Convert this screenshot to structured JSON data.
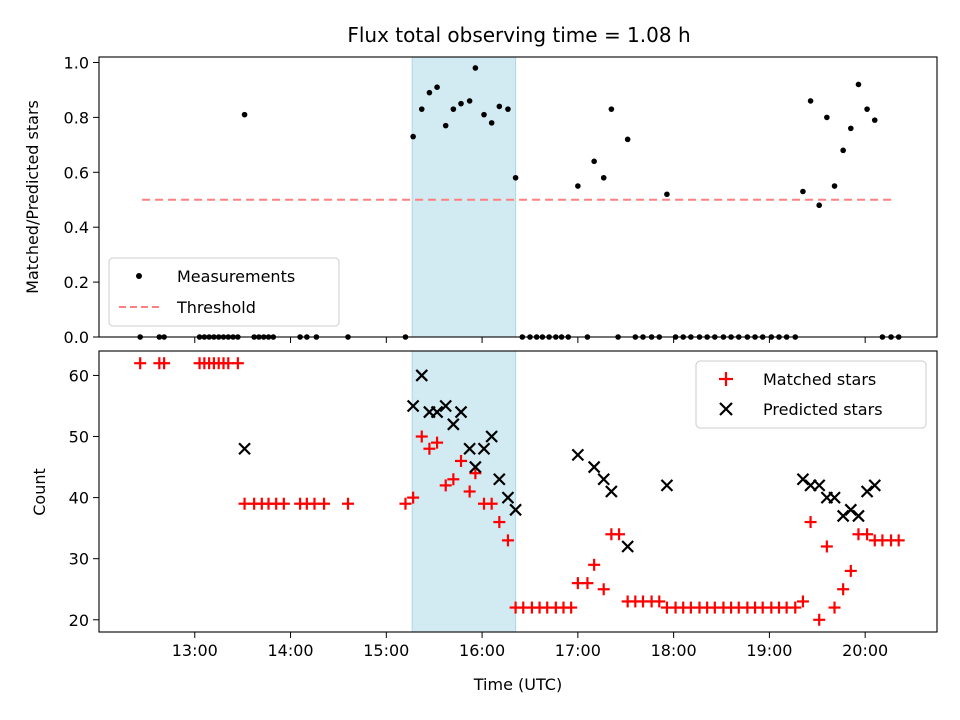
{
  "title": "Flux total observing time = 1.08 h",
  "chart_data": [
    {
      "type": "scatter",
      "panel": "top",
      "ylabel": "Matched/Predicted stars",
      "xlabel": "",
      "x_unit": "hours UTC",
      "xlim": [
        12.0,
        20.75
      ],
      "ylim": [
        0.0,
        1.02
      ],
      "y_ticks": [
        "0.0",
        "0.2",
        "0.4",
        "0.6",
        "0.8",
        "1.0"
      ],
      "highlight_span": [
        15.27,
        16.35
      ],
      "highlight_color": "#add8e6",
      "threshold": {
        "name": "Threshold",
        "value": 0.5,
        "x_range": [
          12.45,
          20.3
        ],
        "color": "#ff8080",
        "style": "dashed"
      },
      "series": [
        {
          "name": "Measurements",
          "color": "#000000",
          "marker": "dot",
          "points": [
            [
              12.43,
              0
            ],
            [
              12.63,
              0
            ],
            [
              12.68,
              0
            ],
            [
              13.05,
              0
            ],
            [
              13.1,
              0
            ],
            [
              13.15,
              0
            ],
            [
              13.2,
              0
            ],
            [
              13.25,
              0
            ],
            [
              13.3,
              0
            ],
            [
              13.35,
              0
            ],
            [
              13.4,
              0
            ],
            [
              13.45,
              0
            ],
            [
              13.52,
              0.81
            ],
            [
              13.62,
              0
            ],
            [
              13.67,
              0
            ],
            [
              13.72,
              0
            ],
            [
              13.77,
              0
            ],
            [
              13.82,
              0
            ],
            [
              14.1,
              0
            ],
            [
              14.17,
              0
            ],
            [
              14.27,
              0
            ],
            [
              14.6,
              0
            ],
            [
              15.2,
              0
            ],
            [
              15.28,
              0.73
            ],
            [
              15.37,
              0.83
            ],
            [
              15.45,
              0.89
            ],
            [
              15.53,
              0.91
            ],
            [
              15.62,
              0.77
            ],
            [
              15.7,
              0.83
            ],
            [
              15.78,
              0.85
            ],
            [
              15.87,
              0.86
            ],
            [
              15.93,
              0.98
            ],
            [
              16.02,
              0.81
            ],
            [
              16.1,
              0.78
            ],
            [
              16.18,
              0.84
            ],
            [
              16.27,
              0.83
            ],
            [
              16.35,
              0.58
            ],
            [
              16.42,
              0
            ],
            [
              16.5,
              0
            ],
            [
              16.57,
              0
            ],
            [
              16.63,
              0
            ],
            [
              16.7,
              0
            ],
            [
              16.77,
              0
            ],
            [
              16.83,
              0
            ],
            [
              16.9,
              0
            ],
            [
              17.0,
              0.55
            ],
            [
              17.1,
              0
            ],
            [
              17.17,
              0.64
            ],
            [
              17.27,
              0.58
            ],
            [
              17.35,
              0.83
            ],
            [
              17.42,
              0
            ],
            [
              17.52,
              0.72
            ],
            [
              17.6,
              0
            ],
            [
              17.68,
              0
            ],
            [
              17.77,
              0
            ],
            [
              17.85,
              0
            ],
            [
              17.93,
              0.52
            ],
            [
              18.02,
              0
            ],
            [
              18.1,
              0
            ],
            [
              18.18,
              0
            ],
            [
              18.27,
              0
            ],
            [
              18.35,
              0
            ],
            [
              18.43,
              0
            ],
            [
              18.52,
              0
            ],
            [
              18.6,
              0
            ],
            [
              18.68,
              0
            ],
            [
              18.77,
              0
            ],
            [
              18.85,
              0
            ],
            [
              18.93,
              0
            ],
            [
              19.02,
              0
            ],
            [
              19.1,
              0
            ],
            [
              19.18,
              0
            ],
            [
              19.27,
              0
            ],
            [
              19.35,
              0.53
            ],
            [
              19.43,
              0.86
            ],
            [
              19.52,
              0.48
            ],
            [
              19.6,
              0.8
            ],
            [
              19.68,
              0.55
            ],
            [
              19.77,
              0.68
            ],
            [
              19.85,
              0.76
            ],
            [
              19.93,
              0.92
            ],
            [
              20.02,
              0.83
            ],
            [
              20.1,
              0.79
            ],
            [
              20.18,
              0
            ],
            [
              20.27,
              0
            ],
            [
              20.35,
              0
            ]
          ]
        }
      ],
      "legend": {
        "placement": "lower-left",
        "entries": [
          "Measurements",
          "Threshold"
        ]
      }
    },
    {
      "type": "scatter",
      "panel": "bottom",
      "ylabel": "Count",
      "xlabel": "Time (UTC)",
      "x_ticks": [
        "13:00",
        "14:00",
        "15:00",
        "16:00",
        "17:00",
        "18:00",
        "19:00",
        "20:00"
      ],
      "x_tick_values": [
        13,
        14,
        15,
        16,
        17,
        18,
        19,
        20
      ],
      "xlim": [
        12.0,
        20.75
      ],
      "ylim": [
        18.0,
        64.0
      ],
      "y_ticks": [
        "20",
        "30",
        "40",
        "50",
        "60"
      ],
      "highlight_span": [
        15.27,
        16.35
      ],
      "series": [
        {
          "name": "Matched stars",
          "color": "#ff0000",
          "marker": "plus",
          "points": [
            [
              12.43,
              62
            ],
            [
              12.63,
              62
            ],
            [
              12.68,
              62
            ],
            [
              13.05,
              62
            ],
            [
              13.1,
              62
            ],
            [
              13.15,
              62
            ],
            [
              13.2,
              62
            ],
            [
              13.25,
              62
            ],
            [
              13.3,
              62
            ],
            [
              13.35,
              62
            ],
            [
              13.45,
              62
            ],
            [
              13.52,
              39
            ],
            [
              13.62,
              39
            ],
            [
              13.7,
              39
            ],
            [
              13.77,
              39
            ],
            [
              13.85,
              39
            ],
            [
              13.93,
              39
            ],
            [
              14.1,
              39
            ],
            [
              14.17,
              39
            ],
            [
              14.25,
              39
            ],
            [
              14.35,
              39
            ],
            [
              14.6,
              39
            ],
            [
              15.2,
              39
            ],
            [
              15.28,
              40
            ],
            [
              15.37,
              50
            ],
            [
              15.45,
              48
            ],
            [
              15.53,
              49
            ],
            [
              15.62,
              42
            ],
            [
              15.7,
              43
            ],
            [
              15.78,
              46
            ],
            [
              15.87,
              41
            ],
            [
              15.93,
              44
            ],
            [
              16.02,
              39
            ],
            [
              16.1,
              39
            ],
            [
              16.18,
              36
            ],
            [
              16.27,
              33
            ],
            [
              16.35,
              22
            ],
            [
              16.43,
              22
            ],
            [
              16.52,
              22
            ],
            [
              16.6,
              22
            ],
            [
              16.68,
              22
            ],
            [
              16.77,
              22
            ],
            [
              16.85,
              22
            ],
            [
              16.93,
              22
            ],
            [
              17.0,
              26
            ],
            [
              17.1,
              26
            ],
            [
              17.17,
              29
            ],
            [
              17.27,
              25
            ],
            [
              17.35,
              34
            ],
            [
              17.43,
              34
            ],
            [
              17.52,
              23
            ],
            [
              17.6,
              23
            ],
            [
              17.68,
              23
            ],
            [
              17.77,
              23
            ],
            [
              17.85,
              23
            ],
            [
              17.93,
              22
            ],
            [
              18.02,
              22
            ],
            [
              18.1,
              22
            ],
            [
              18.18,
              22
            ],
            [
              18.27,
              22
            ],
            [
              18.35,
              22
            ],
            [
              18.43,
              22
            ],
            [
              18.52,
              22
            ],
            [
              18.6,
              22
            ],
            [
              18.68,
              22
            ],
            [
              18.77,
              22
            ],
            [
              18.85,
              22
            ],
            [
              18.93,
              22
            ],
            [
              19.02,
              22
            ],
            [
              19.1,
              22
            ],
            [
              19.18,
              22
            ],
            [
              19.27,
              22
            ],
            [
              19.35,
              23
            ],
            [
              19.43,
              36
            ],
            [
              19.52,
              20
            ],
            [
              19.6,
              32
            ],
            [
              19.68,
              22
            ],
            [
              19.77,
              25
            ],
            [
              19.85,
              28
            ],
            [
              19.93,
              34
            ],
            [
              20.02,
              34
            ],
            [
              20.1,
              33
            ],
            [
              20.18,
              33
            ],
            [
              20.27,
              33
            ],
            [
              20.35,
              33
            ]
          ]
        },
        {
          "name": "Predicted stars",
          "color": "#000000",
          "marker": "x",
          "points": [
            [
              13.52,
              48
            ],
            [
              15.28,
              55
            ],
            [
              15.37,
              60
            ],
            [
              15.45,
              54
            ],
            [
              15.53,
              54
            ],
            [
              15.62,
              55
            ],
            [
              15.7,
              52
            ],
            [
              15.78,
              54
            ],
            [
              15.87,
              48
            ],
            [
              15.93,
              45
            ],
            [
              16.02,
              48
            ],
            [
              16.1,
              50
            ],
            [
              16.18,
              43
            ],
            [
              16.27,
              40
            ],
            [
              16.35,
              38
            ],
            [
              17.0,
              47
            ],
            [
              17.17,
              45
            ],
            [
              17.27,
              43
            ],
            [
              17.35,
              41
            ],
            [
              17.52,
              32
            ],
            [
              17.93,
              42
            ],
            [
              19.35,
              43
            ],
            [
              19.43,
              42
            ],
            [
              19.52,
              42
            ],
            [
              19.6,
              40
            ],
            [
              19.68,
              40
            ],
            [
              19.77,
              37
            ],
            [
              19.85,
              38
            ],
            [
              19.93,
              37
            ],
            [
              20.02,
              41
            ],
            [
              20.1,
              42
            ]
          ]
        }
      ],
      "legend": {
        "placement": "upper-right",
        "entries": [
          "Matched stars",
          "Predicted stars"
        ]
      }
    }
  ]
}
